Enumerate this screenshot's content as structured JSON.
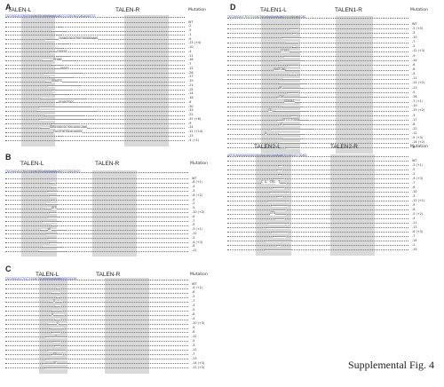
{
  "figure_caption": "Supplemental Fig. 4",
  "mutation_header": "Mutation",
  "panels": [
    {
      "id": "A",
      "label": "A",
      "talens": [
        {
          "name": "TALEN-L"
        },
        {
          "name": "TALEN-R"
        }
      ],
      "reference": "TGCCAGCACCTCCTCGCAGTGCAGAGAAGAGAGCCCCGGCAGCGAGAGAGTCC",
      "mutations": [
        "WT",
        "-2",
        "-5",
        "-1",
        "-9",
        "-13 (+4)",
        "-10",
        "-4",
        "-11",
        "-16",
        "-7",
        "-12",
        "-26",
        "-17",
        "-19",
        "-21",
        "-15",
        "-14",
        "-18",
        "-6",
        "-30",
        "-33",
        "-22",
        "-25 (+6)",
        "-9",
        "-24",
        "-11 (+14)",
        "-13",
        "-4 (+1)"
      ],
      "insertions": [
        "TGGAGCGGCGTGGTGGGGGGAAG",
        "CGGCGG",
        "GCGAG",
        "GAGCG",
        "GGAGTG",
        "GCAGGTGGC",
        "GAGCGGGCGGTGGCAGGCCAAG",
        "CACGTGGTGCACAGGGC"
      ]
    },
    {
      "id": "B",
      "label": "B",
      "talens": [
        {
          "name": "TALEN-L"
        },
        {
          "name": "TALEN-R"
        }
      ],
      "reference": "TGCCAGCACCTCCTCGCAGTGCAGAGAAGAGAGCCCCGGCAGCG",
      "mutations": [
        "WT",
        "-6 (+1)",
        "-4",
        "-3",
        "-8 (+2)",
        "-4",
        "-2",
        "-5",
        "-10 (+2)",
        "-6",
        "-7",
        "-9",
        "-3 (+1)",
        "-12",
        "-5",
        "-4 (+3)",
        "-8",
        "-11"
      ],
      "insertions": [
        "GCG",
        "AC"
      ]
    },
    {
      "id": "C",
      "label": "C",
      "talens": [
        {
          "name": "TALEN-L"
        },
        {
          "name": "TALEN-R"
        }
      ],
      "reference": "TGCCAGCACCTCCTCGCAGTGCAGAGAAGAGAGCCCCGGCAG",
      "mutations": [
        "WT",
        "-4 (+1)",
        "-6",
        "-2",
        "-7",
        "-3",
        "-5",
        "-8",
        "-4",
        "-10 (+3)",
        "-9",
        "-6",
        "-12",
        "-5",
        "-3",
        "-11",
        "-7",
        "-13",
        "-14 (+3)",
        "-12 (+3)"
      ],
      "insertions": [
        "G",
        "A",
        "C",
        "G",
        "GA",
        "AC"
      ]
    },
    {
      "id": "D",
      "label": "D",
      "talens": [
        {
          "name": "TALEN1-L"
        },
        {
          "name": "TALEN1-R"
        }
      ],
      "reference": "TGCCAGCACCTCCTCGCAGTGCAGAGAAGAGAGCCCCGGCAGCGAG",
      "mutations": [
        "WT",
        "-5 (+5)",
        "-3",
        "-10",
        "-7",
        "-2",
        "-12 (+3)",
        "-9",
        "-14",
        "-6",
        "-8",
        "-4",
        "-11",
        "-15 (+2)",
        "-13",
        "-5",
        "-16",
        "-7 (+1)",
        "-10",
        "-19 (+2)",
        "-3",
        "-17",
        "-8",
        "-22",
        "-12",
        "-9 (+3)",
        "-14 (+2)",
        "-6"
      ],
      "insertions": [
        "CCGCG",
        "GAGTCAG",
        "AC",
        "CAG",
        "GGAGAG",
        "CG",
        "GTCCCTCGGA",
        "G",
        "A"
      ]
    },
    {
      "id": "D2",
      "label": "",
      "talens": [
        {
          "name": "TALEN2-L"
        },
        {
          "name": "TALEN2-R"
        }
      ],
      "reference": "AGTGCAGAGAAGAGAGCCCCGGCAGCGAGAGAGTCCGGAGCCGGAGC",
      "mutations": [
        "WT",
        "-3 (+1)",
        "-5",
        "-2",
        "-4 (+3)",
        "-7",
        "-6",
        "-10",
        "-3",
        "-12 (+1)",
        "-9",
        "-8",
        "-5 (+2)",
        "-4",
        "-11",
        "-13",
        "-6 (+3)",
        "-7",
        "-14",
        "-2",
        "-15"
      ],
      "insertions": [
        "C G. CTG. T",
        "CTG"
      ]
    }
  ]
}
